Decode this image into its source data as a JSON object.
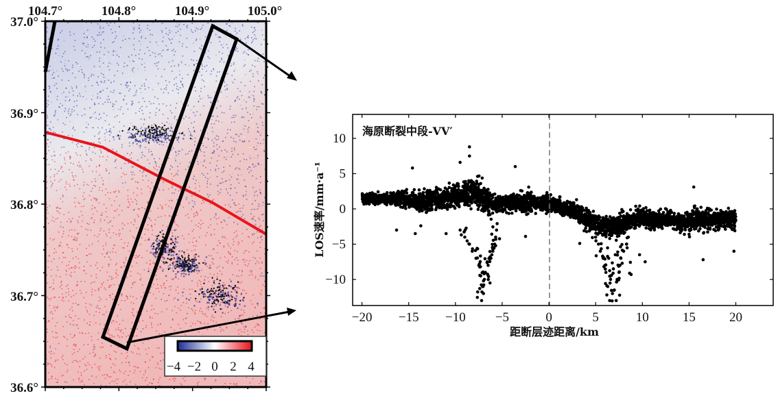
{
  "map": {
    "lon_ticks": [
      "104.7°",
      "104.8°",
      "104.9°",
      "105.0°"
    ],
    "lon_values": [
      104.7,
      104.8,
      104.9,
      105.0
    ],
    "lat_ticks": [
      "37.0°",
      "36.9°",
      "36.8°",
      "36.7°",
      "36.6°"
    ],
    "lat_values": [
      37.0,
      36.9,
      36.8,
      36.7,
      36.6
    ],
    "lon_range": [
      104.7,
      105.0
    ],
    "lat_range": [
      36.6,
      37.0
    ],
    "colorbar": {
      "ticks": [
        "−4",
        "−2",
        "0",
        "2",
        "4"
      ],
      "range": [
        -4,
        4
      ],
      "low_color": "#1f2f9a",
      "mid_color": "#ffffff",
      "high_color": "#e8141b"
    },
    "fault_color": "#e8141b"
  },
  "chart_data": {
    "type": "scatter",
    "title": "海原断裂中段-VV′",
    "xlabel": "距断层迹距离/km",
    "ylabel": "LOS速率/mm·a⁻¹",
    "xlim": [
      -21,
      24
    ],
    "ylim": [
      -13.7,
      13.4
    ],
    "xticks": [
      -20,
      -15,
      -10,
      -5,
      0,
      5,
      10,
      15,
      20
    ],
    "xtick_labels": [
      "−20",
      "−15",
      "−10",
      "−5",
      "0",
      "5",
      "10",
      "15",
      "20"
    ],
    "yticks": [
      10,
      5,
      0,
      -5,
      -10
    ],
    "ytick_labels": [
      "10",
      "5",
      "0",
      "−5",
      "−10"
    ],
    "reference_line_x": 0,
    "point_color": "#000000",
    "profile_mean": {
      "x": [
        -20,
        -19,
        -18,
        -17,
        -16,
        -15,
        -14,
        -13,
        -12,
        -11,
        -10,
        -9,
        -8,
        -7,
        -6,
        -5,
        -4,
        -3,
        -2,
        -1,
        0,
        1,
        2,
        3,
        4,
        5,
        6,
        7,
        8,
        9,
        10,
        11,
        12,
        13,
        14,
        15,
        16,
        17,
        18,
        19,
        20
      ],
      "y": [
        1.5,
        1.5,
        1.5,
        1.5,
        1.5,
        1.3,
        1.0,
        1.2,
        1.5,
        1.5,
        1.8,
        2.0,
        2.6,
        1.5,
        0.5,
        0.8,
        1.0,
        0.8,
        0.8,
        0.8,
        1.0,
        0.5,
        0.0,
        -0.5,
        -1.5,
        -2.0,
        -2.5,
        -2.5,
        -2.0,
        -1.5,
        -1.2,
        -1.5,
        -1.5,
        -1.5,
        -2.0,
        -1.8,
        -1.5,
        -1.5,
        -1.5,
        -1.5,
        -1.5
      ],
      "spread": [
        0.6,
        0.6,
        0.6,
        0.7,
        0.8,
        1.0,
        1.2,
        1.2,
        1.1,
        1.2,
        1.4,
        1.5,
        1.6,
        1.4,
        1.0,
        1.0,
        1.1,
        1.0,
        0.9,
        0.9,
        0.9,
        0.9,
        0.9,
        1.0,
        1.1,
        1.1,
        1.2,
        1.2,
        1.1,
        1.1,
        1.1,
        0.9,
        0.8,
        0.8,
        1.0,
        1.2,
        1.2,
        1.1,
        1.1,
        1.1,
        1.0
      ]
    },
    "trough_points": [
      [
        -7.2,
        -13
      ],
      [
        -7.0,
        -12
      ],
      [
        -7.1,
        -11
      ],
      [
        -6.9,
        -10
      ],
      [
        -7.3,
        -9.5
      ],
      [
        -6.8,
        -9
      ],
      [
        -7.5,
        -8
      ],
      [
        -6.5,
        -8
      ],
      [
        -6.2,
        -7
      ],
      [
        -7.8,
        -7
      ],
      [
        -6,
        -6
      ],
      [
        -8.2,
        -6
      ],
      [
        -5.8,
        -5
      ],
      [
        -8.5,
        -5
      ],
      [
        -5.7,
        -4
      ],
      [
        -9,
        -4
      ],
      [
        -9.5,
        -3
      ],
      [
        -5.6,
        -3
      ],
      [
        -6.3,
        -10.5
      ],
      [
        -7.0,
        -10.2
      ],
      [
        -6.6,
        -7.5
      ],
      [
        -6.1,
        -6.5
      ],
      [
        -7.4,
        -11.3
      ],
      [
        -5.9,
        -5.5
      ],
      [
        6.5,
        -13
      ],
      [
        7.2,
        -13
      ],
      [
        6.8,
        -12
      ],
      [
        6.3,
        -11
      ],
      [
        7,
        -11.5
      ],
      [
        6.6,
        -10
      ],
      [
        7.3,
        -10
      ],
      [
        6.1,
        -9
      ],
      [
        7.5,
        -9
      ],
      [
        6,
        -8
      ],
      [
        7.6,
        -8
      ],
      [
        5.8,
        -7
      ],
      [
        7.7,
        -7
      ],
      [
        5.5,
        -6
      ],
      [
        8,
        -6
      ],
      [
        5.3,
        -5
      ],
      [
        8.3,
        -5
      ],
      [
        8.8,
        -9.3
      ],
      [
        5,
        -4
      ],
      [
        8.5,
        -4
      ],
      [
        6.9,
        -8.5
      ],
      [
        6.4,
        -7
      ],
      [
        7.1,
        -6.5
      ],
      [
        6.2,
        -12.2
      ]
    ],
    "outlier_points": [
      [
        -8.5,
        8.8
      ],
      [
        -8.5,
        7.5
      ],
      [
        -3.6,
        6
      ],
      [
        -14.6,
        5.8
      ],
      [
        15.5,
        3.1
      ],
      [
        -9.5,
        6.6
      ],
      [
        -11,
        -3.5
      ],
      [
        -14.3,
        -3.5
      ],
      [
        9.7,
        -6.5
      ],
      [
        10.3,
        -7.5
      ],
      [
        16.5,
        -7.2
      ],
      [
        19.8,
        -6
      ],
      [
        3.3,
        -4.9
      ],
      [
        -2.5,
        -3.9
      ],
      [
        -16.3,
        -3
      ]
    ]
  }
}
